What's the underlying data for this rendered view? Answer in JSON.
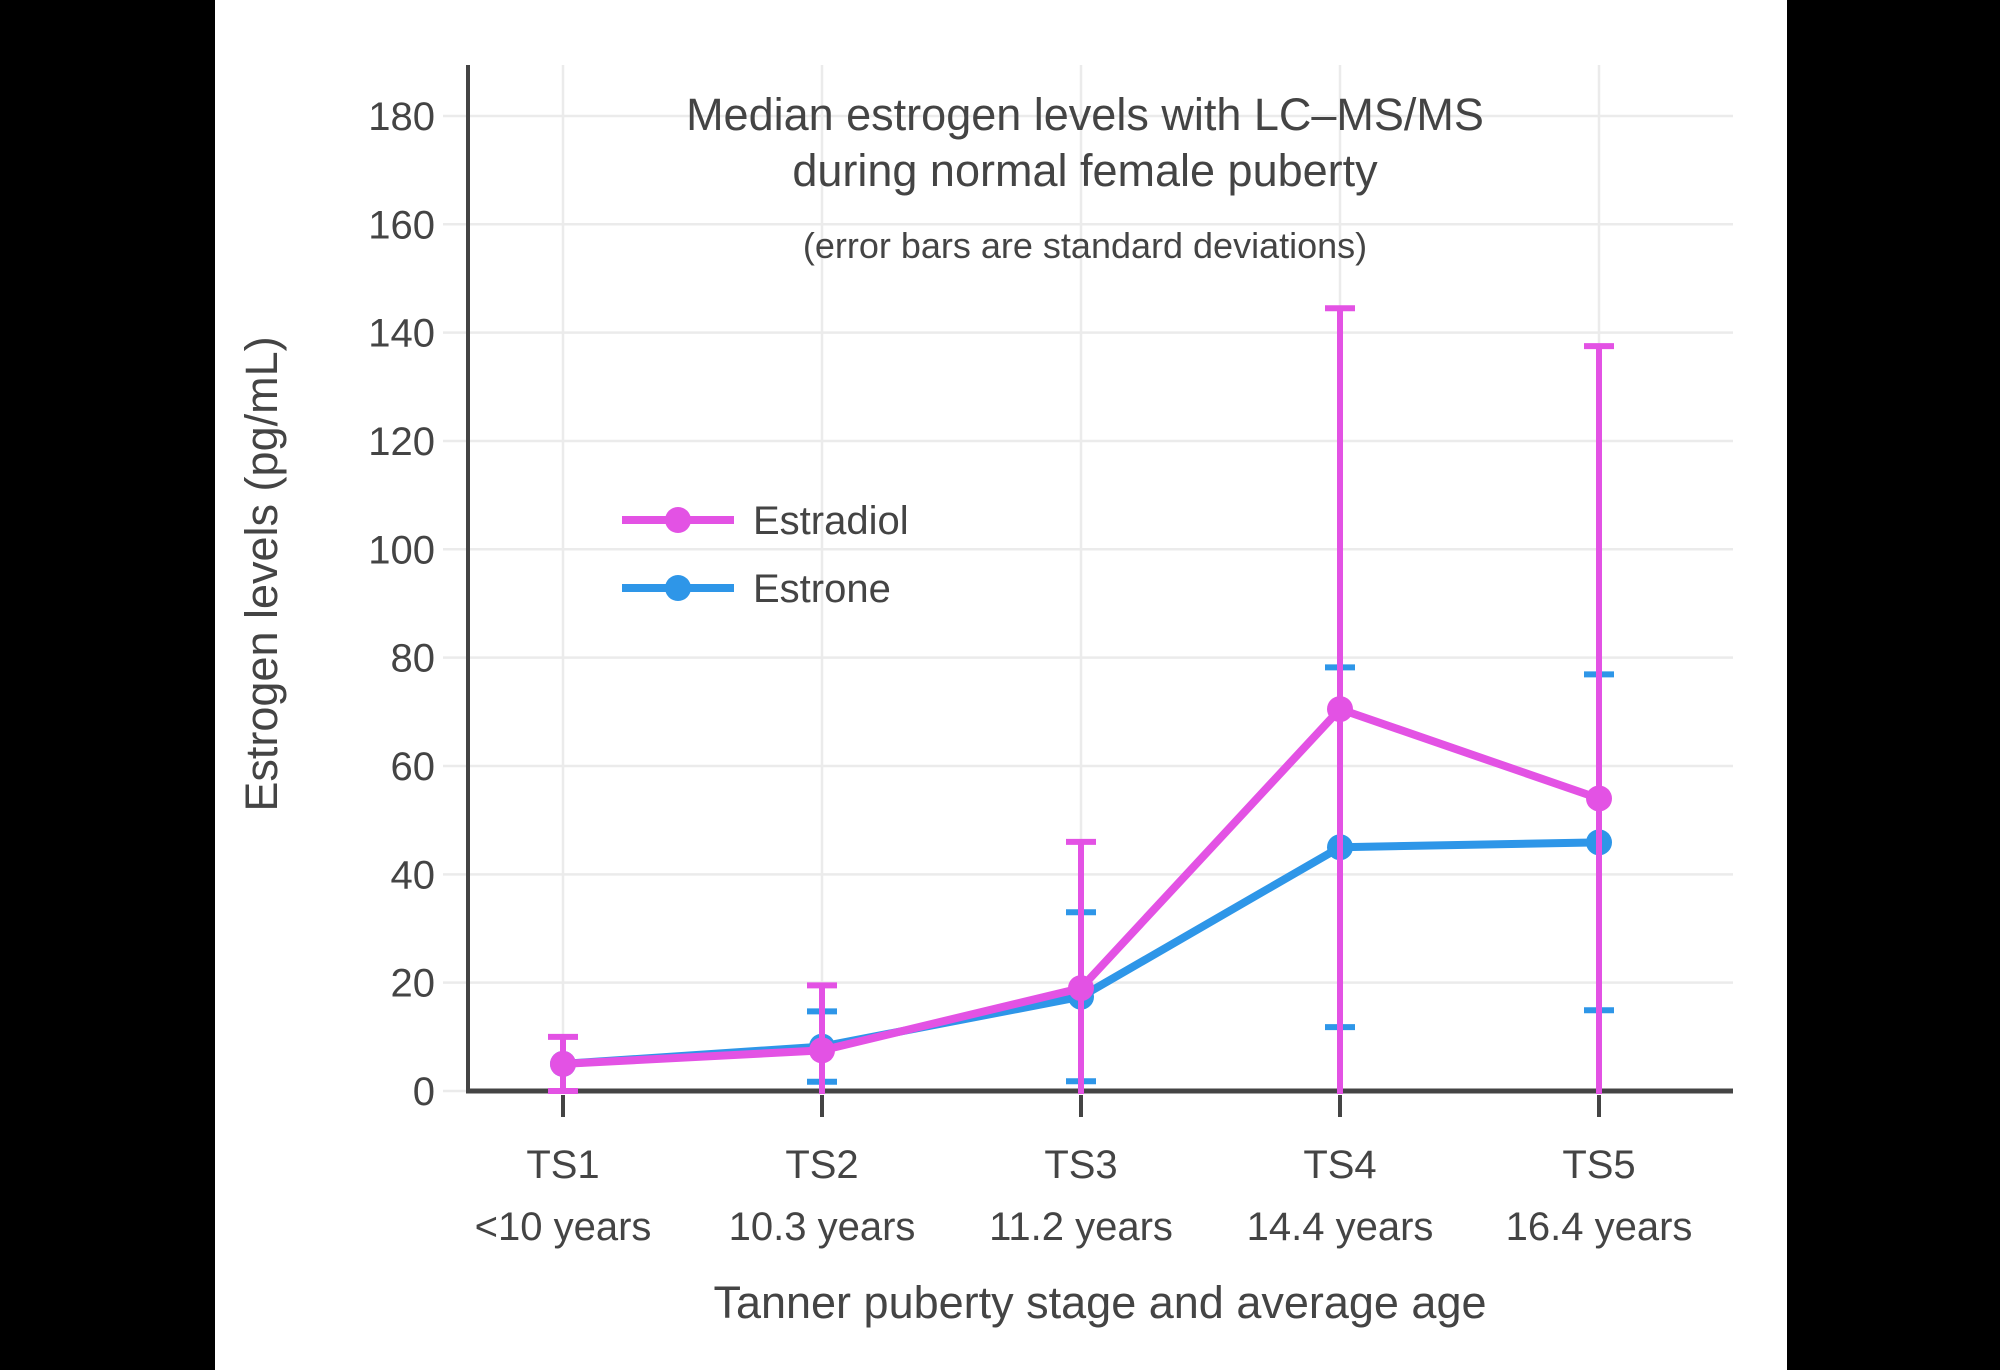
{
  "colors": {
    "background": "#FFFFFF",
    "frame": "#000000",
    "text": "#444444",
    "grid": "#EBEBEB",
    "axis": "#444444",
    "estradiol": "#E352E4",
    "estrone": "#2E96E8"
  },
  "chart_data": {
    "type": "line",
    "title": "Median estrogen levels with LC–MS/MS",
    "title_line2": "during normal female puberty",
    "subtitle": "(error bars are standard deviations)",
    "xlabel": "Tanner puberty stage and average age",
    "ylabel": "Estrogen levels (pg/mL)",
    "error_bar_meaning": "standard deviations",
    "categories": [
      "TS1",
      "TS2",
      "TS3",
      "TS4",
      "TS5"
    ],
    "category_ages": [
      "<10 years",
      "10.3 years",
      "11.2 years",
      "14.4 years",
      "16.4 years"
    ],
    "y_ticks": [
      0,
      20,
      40,
      60,
      80,
      100,
      120,
      140,
      160,
      180
    ],
    "ylim": [
      0,
      190
    ],
    "grid": true,
    "legend_position": "inside-upper-left",
    "series": [
      {
        "name": "Estradiol",
        "color": "#E352E4",
        "values": [
          5,
          7.5,
          19,
          70.5,
          54
        ],
        "sd": [
          5,
          12,
          27,
          74,
          83.5
        ]
      },
      {
        "name": "Estrone",
        "color": "#2E96E8",
        "values": [
          5,
          8.2,
          17.4,
          45,
          45.9
        ],
        "sd": [
          0,
          6.5,
          15.6,
          33.2,
          31
        ]
      }
    ]
  }
}
